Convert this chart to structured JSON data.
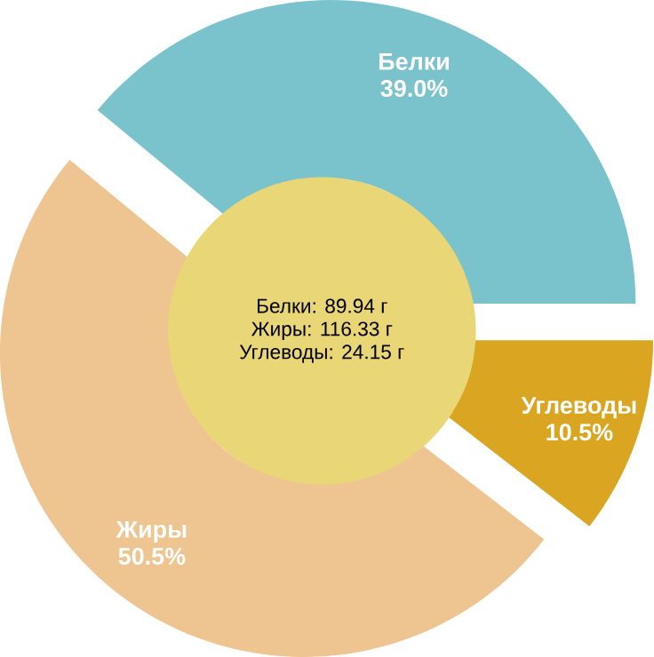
{
  "chart_data": {
    "type": "donut",
    "categories": [
      "Белки",
      "Жиры",
      "Углеводы"
    ],
    "values": [
      39.0,
      50.5,
      10.5
    ],
    "colors": [
      "#7ac3cc",
      "#eec591",
      "#daa520"
    ],
    "value_labels": [
      "39.0%",
      "50.5%",
      "10.5%"
    ],
    "annotations": [
      "Белки: 89.94 г",
      "Жиры: 116.33 г",
      "Углеводы: 24.15 г"
    ]
  }
}
